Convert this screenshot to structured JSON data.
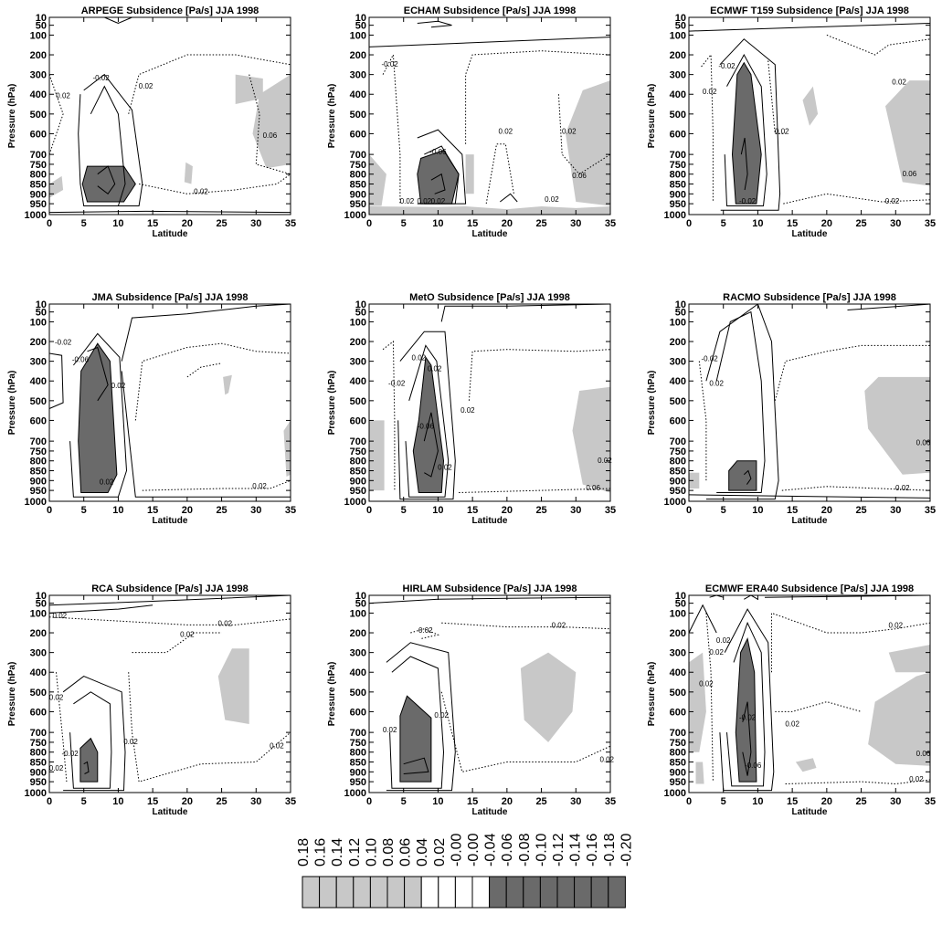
{
  "colors": {
    "light": "#c8c8c8",
    "dark": "#6a6a6a",
    "neutral": "#ffffff",
    "line": "#000000"
  },
  "chart_data": [
    {
      "type": "contour",
      "id": "arpege",
      "title": "ARPEGE   Subsidence  [Pa/s]   JJA 1998",
      "xlabel": "Latitude",
      "ylabel": "Pressure (hPa)",
      "xticks": [
        0,
        5,
        10,
        15,
        20,
        25,
        30,
        35
      ],
      "yticks": [
        10,
        50,
        100,
        200,
        300,
        400,
        500,
        600,
        700,
        750,
        800,
        850,
        900,
        950,
        1000
      ],
      "xlim": [
        0,
        35
      ],
      "ylim": [
        10,
        1000
      ],
      "contour_labels": [
        "-0.02",
        "0.02",
        "0.02",
        "0.06",
        "0.02"
      ]
    },
    {
      "type": "contour",
      "id": "echam",
      "title": "ECHAM   Subsidence  [Pa/s]   JJA 1998",
      "xlabel": "Latitude",
      "ylabel": "Pressure (hPa)",
      "xticks": [
        0,
        5,
        10,
        15,
        20,
        25,
        30,
        35
      ],
      "yticks": [
        10,
        50,
        100,
        200,
        300,
        400,
        500,
        600,
        700,
        750,
        800,
        850,
        900,
        950,
        1000
      ],
      "xlim": [
        0,
        35
      ],
      "ylim": [
        10,
        1000
      ],
      "contour_labels": [
        "-0.02",
        "0.02",
        "-0.06",
        "0.02",
        "0.02",
        "0.02",
        "0.06",
        "0.02",
        "0.02"
      ]
    },
    {
      "type": "contour",
      "id": "ecmwf-t159",
      "title": "ECMWF T159   Subsidence  [Pa/s]   JJA 1998",
      "xlabel": "Latitude",
      "ylabel": "Pressure (hPa)",
      "xticks": [
        0,
        5,
        10,
        15,
        20,
        25,
        30,
        35
      ],
      "yticks": [
        10,
        50,
        100,
        200,
        300,
        400,
        500,
        600,
        700,
        750,
        800,
        850,
        900,
        950,
        1000
      ],
      "xlim": [
        0,
        35
      ],
      "ylim": [
        10,
        1000
      ],
      "contour_labels": [
        "-0.02",
        "0.02",
        "0.02",
        "0.02",
        "0.06",
        "0.02",
        "-0.02"
      ]
    },
    {
      "type": "contour",
      "id": "jma",
      "title": "JMA   Subsidence  [Pa/s]   JJA 1998",
      "xlabel": "Latitude",
      "ylabel": "Pressure (hPa)",
      "xticks": [
        0,
        5,
        10,
        15,
        20,
        25,
        30,
        35
      ],
      "yticks": [
        10,
        50,
        100,
        200,
        300,
        400,
        500,
        600,
        700,
        750,
        800,
        850,
        900,
        950,
        1000
      ],
      "xlim": [
        0,
        35
      ],
      "ylim": [
        10,
        1000
      ],
      "contour_labels": [
        "-0.02",
        "-0.06",
        "0.02",
        "0.02",
        "0.02"
      ]
    },
    {
      "type": "contour",
      "id": "meto",
      "title": "MetO   Subsidence  [Pa/s]   JJA 1998",
      "xlabel": "Latitude",
      "ylabel": "Pressure (hPa)",
      "xticks": [
        0,
        5,
        10,
        15,
        20,
        25,
        30,
        35
      ],
      "yticks": [
        10,
        50,
        100,
        200,
        300,
        400,
        500,
        600,
        700,
        750,
        800,
        850,
        900,
        950,
        1000
      ],
      "xlim": [
        0,
        35
      ],
      "ylim": [
        10,
        1000
      ],
      "contour_labels": [
        "0.02",
        "-0.02",
        "-0.06",
        "0.02",
        "0.02",
        "0.02",
        "0.06",
        "0.02"
      ]
    },
    {
      "type": "contour",
      "id": "racmo",
      "title": "RACMO   Subsidence  [Pa/s]   JJA 1998",
      "xlabel": "Latitude",
      "ylabel": "Pressure (hPa)",
      "xticks": [
        0,
        5,
        10,
        15,
        20,
        25,
        30,
        35
      ],
      "yticks": [
        10,
        50,
        100,
        200,
        300,
        400,
        500,
        600,
        700,
        750,
        800,
        850,
        900,
        950,
        1000
      ],
      "xlim": [
        0,
        35
      ],
      "ylim": [
        10,
        1000
      ],
      "contour_labels": [
        "-0.02",
        "0.02",
        "0.06",
        "0.02"
      ]
    },
    {
      "type": "contour",
      "id": "rca",
      "title": "RCA   Subsidence  [Pa/s]   JJA 1998",
      "xlabel": "Latitude",
      "ylabel": "Pressure (hPa)",
      "xticks": [
        0,
        5,
        10,
        15,
        20,
        25,
        30,
        35
      ],
      "yticks": [
        10,
        50,
        100,
        200,
        300,
        400,
        500,
        600,
        700,
        750,
        800,
        850,
        900,
        950,
        1000
      ],
      "xlim": [
        0,
        35
      ],
      "ylim": [
        10,
        1000
      ],
      "contour_labels": [
        "0.02",
        "0.02",
        "0.02",
        "-0.02",
        "0.02",
        "0.02",
        "0.02",
        "0.02"
      ]
    },
    {
      "type": "contour",
      "id": "hirlam",
      "title": "HIRLAM   Subsidence  [Pa/s]   JJA 1998",
      "xlabel": "Latitude",
      "ylabel": "Pressure (hPa)",
      "xticks": [
        0,
        5,
        10,
        15,
        20,
        25,
        30,
        35
      ],
      "yticks": [
        10,
        50,
        100,
        200,
        300,
        400,
        500,
        600,
        700,
        750,
        800,
        850,
        900,
        950,
        1000
      ],
      "xlim": [
        0,
        35
      ],
      "ylim": [
        10,
        1000
      ],
      "contour_labels": [
        "0.02",
        "0.02",
        "0.02",
        "0.02",
        "0.02"
      ]
    },
    {
      "type": "contour",
      "id": "ecmwf-era40",
      "title": "ECMWF ERA40   Subsidence  [Pa/s]   JJA 1998",
      "xlabel": "Latitude",
      "ylabel": "Pressure (hPa)",
      "xticks": [
        0,
        5,
        10,
        15,
        20,
        25,
        30,
        35
      ],
      "yticks": [
        10,
        50,
        100,
        200,
        300,
        400,
        500,
        600,
        700,
        750,
        800,
        850,
        900,
        950,
        1000
      ],
      "xlim": [
        0,
        35
      ],
      "ylim": [
        10,
        1000
      ],
      "contour_labels": [
        "0.02",
        "0.02",
        "0.02",
        "-0.02",
        "-0.06",
        "0.02",
        "0.06",
        "0.02",
        "0.02"
      ]
    },
    {
      "type": "colorbar",
      "id": "colorbar",
      "levels": [
        "0.18",
        "0.16",
        "0.14",
        "0.12",
        "0.10",
        "0.08",
        "0.06",
        "0.04",
        "0.02",
        "-0.00",
        "-0.00",
        "-0.04",
        "-0.06",
        "-0.08",
        "-0.10",
        "-0.12",
        "-0.14",
        "-0.16",
        "-0.18",
        "-0.20"
      ],
      "fill": [
        "light",
        "light",
        "light",
        "light",
        "light",
        "light",
        "light",
        "neutral",
        "neutral",
        "neutral",
        "neutral",
        "dark",
        "dark",
        "dark",
        "dark",
        "dark",
        "dark",
        "dark",
        "dark"
      ]
    }
  ]
}
